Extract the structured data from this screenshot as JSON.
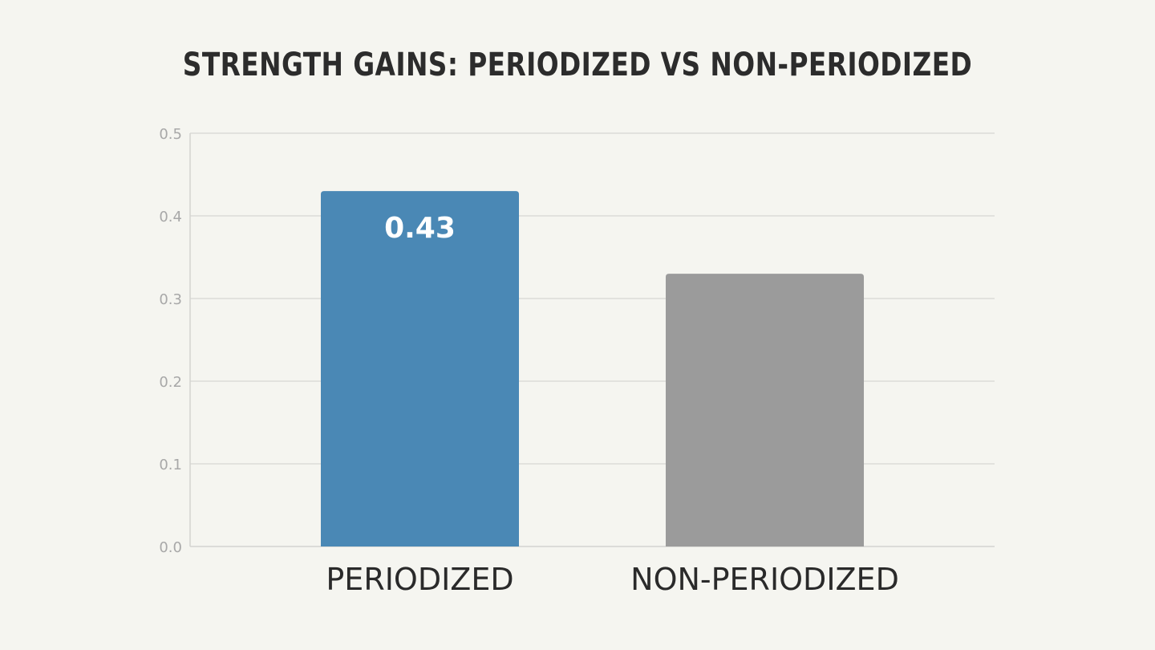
{
  "chart_data": {
    "type": "bar",
    "title": "STRENGTH GAINS: PERIODIZED VS NON-PERIODIZED",
    "categories": [
      "PERIODIZED",
      "NON-PERIODIZED"
    ],
    "values": [
      0.43,
      0.33
    ],
    "data_labels": [
      "0.43",
      ""
    ],
    "colors": [
      "#4a88b5",
      "#9b9b9b"
    ],
    "ylim": [
      0,
      0.5
    ],
    "yticks": [
      "0.0",
      "0.1",
      "0.2",
      "0.3",
      "0.4",
      "0.5"
    ],
    "xlabel": "",
    "ylabel": "",
    "grid": true
  }
}
